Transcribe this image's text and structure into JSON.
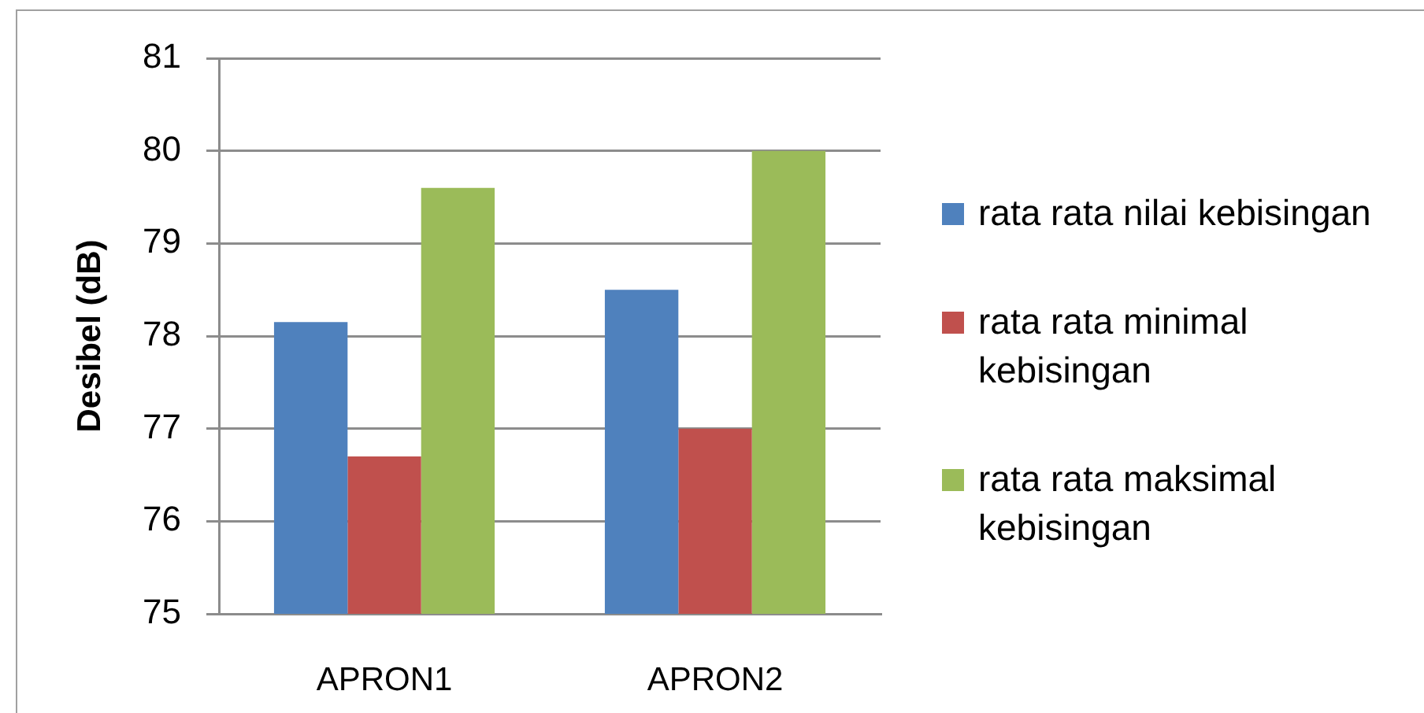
{
  "chart_data": {
    "type": "bar",
    "ylabel": "Desibel (dB)",
    "categories": [
      "APRON1",
      "APRON2"
    ],
    "series": [
      {
        "name": "rata rata nilai kebisingan",
        "color": "#4f81bd",
        "values": [
          78.15,
          78.5
        ]
      },
      {
        "name": "rata rata minimal kebisingan",
        "color": "#c0504d",
        "values": [
          76.7,
          77
        ]
      },
      {
        "name": "rata rata maksimal kebisingan",
        "color": "#9bbb59",
        "values": [
          79.6,
          80
        ]
      }
    ],
    "ylim": [
      75,
      81
    ],
    "yticks": [
      75,
      76,
      77,
      78,
      79,
      80,
      81
    ],
    "grid": "y",
    "legend": "right"
  }
}
